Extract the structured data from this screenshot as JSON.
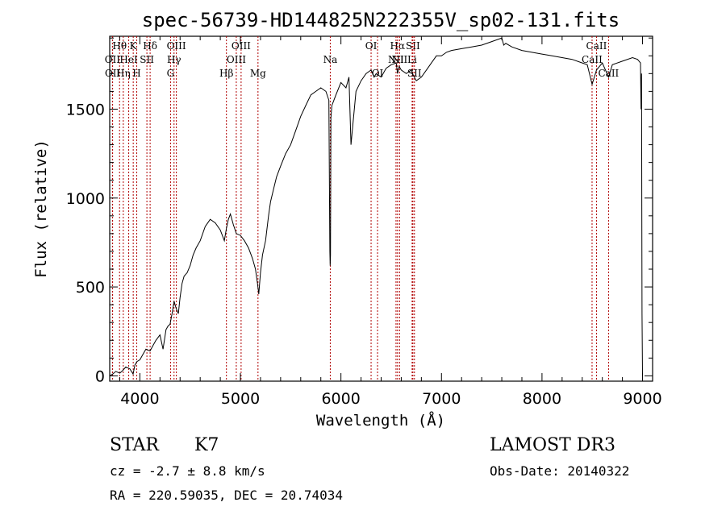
{
  "chart_data": {
    "type": "line",
    "title": "spec-56739-HD144825N222355V_sp02-131.fits",
    "xlabel": "Wavelength (Å)",
    "ylabel": "Flux (relative)",
    "xlim": [
      3700,
      9100
    ],
    "ylim": [
      -30,
      1910
    ],
    "x_ticks": [
      4000,
      5000,
      6000,
      7000,
      8000,
      9000
    ],
    "y_ticks": [
      0,
      500,
      1000,
      1500
    ],
    "series": [
      {
        "name": "flux",
        "x": [
          3700,
          3730,
          3760,
          3800,
          3830,
          3860,
          3900,
          3933,
          3950,
          3970,
          4000,
          4030,
          4060,
          4101,
          4130,
          4160,
          4200,
          4230,
          4260,
          4280,
          4300,
          4320,
          4340,
          4360,
          4383,
          4400,
          4420,
          4440,
          4470,
          4500,
          4530,
          4560,
          4600,
          4650,
          4700,
          4750,
          4800,
          4840,
          4861,
          4880,
          4900,
          4930,
          4960,
          5000,
          5040,
          5080,
          5120,
          5150,
          5170,
          5183,
          5200,
          5220,
          5250,
          5280,
          5300,
          5330,
          5360,
          5400,
          5450,
          5500,
          5550,
          5600,
          5650,
          5700,
          5750,
          5800,
          5850,
          5880,
          5890,
          5893,
          5896,
          5900,
          5910,
          5950,
          6000,
          6050,
          6080,
          6100,
          6150,
          6200,
          6250,
          6300,
          6330,
          6350,
          6400,
          6450,
          6500,
          6550,
          6563,
          6580,
          6600,
          6650,
          6700,
          6720,
          6750,
          6800,
          6850,
          6900,
          6950,
          7000,
          7050,
          7100,
          7200,
          7300,
          7400,
          7500,
          7600,
          7620,
          7640,
          7700,
          7800,
          7900,
          8000,
          8100,
          8200,
          8300,
          8400,
          8450,
          8498,
          8542,
          8600,
          8662,
          8700,
          8800,
          8900,
          8950,
          8980,
          8985,
          8990,
          8995,
          9000
        ],
        "y": [
          0,
          10,
          25,
          15,
          30,
          50,
          40,
          10,
          60,
          80,
          90,
          120,
          150,
          140,
          170,
          200,
          230,
          150,
          260,
          280,
          290,
          350,
          420,
          380,
          350,
          440,
          520,
          560,
          580,
          620,
          680,
          720,
          760,
          840,
          880,
          860,
          820,
          760,
          830,
          880,
          910,
          850,
          800,
          790,
          760,
          720,
          660,
          600,
          520,
          460,
          580,
          680,
          760,
          900,
          980,
          1050,
          1120,
          1180,
          1250,
          1300,
          1380,
          1460,
          1520,
          1580,
          1600,
          1620,
          1600,
          1550,
          700,
          620,
          680,
          1450,
          1520,
          1580,
          1650,
          1620,
          1680,
          1300,
          1600,
          1660,
          1700,
          1720,
          1680,
          1700,
          1680,
          1730,
          1750,
          1760,
          1700,
          1740,
          1720,
          1700,
          1720,
          1690,
          1660,
          1680,
          1720,
          1760,
          1800,
          1800,
          1820,
          1830,
          1840,
          1850,
          1860,
          1880,
          1900,
          1860,
          1870,
          1850,
          1830,
          1820,
          1810,
          1800,
          1790,
          1780,
          1760,
          1750,
          1640,
          1720,
          1760,
          1680,
          1750,
          1770,
          1790,
          1780,
          1760,
          1500,
          1700,
          350,
          0
        ]
      }
    ],
    "lines": [
      {
        "name": "Hθ",
        "wave": 3798,
        "row": 1
      },
      {
        "name": "OII",
        "wave": 3727,
        "row": 2
      },
      {
        "name": "OII",
        "wave": 3729,
        "row": 3
      },
      {
        "name": "K",
        "wave": 3934,
        "row": 1
      },
      {
        "name": "HeI",
        "wave": 3889,
        "row": 2
      },
      {
        "name": "Hη",
        "wave": 3835,
        "row": 3
      },
      {
        "name": "Hδ",
        "wave": 4102,
        "row": 1
      },
      {
        "name": "SII",
        "wave": 4070,
        "row": 2
      },
      {
        "name": "H",
        "wave": 3969,
        "row": 3
      },
      {
        "name": "OIII",
        "wave": 4363,
        "row": 1
      },
      {
        "name": "Hγ",
        "wave": 4340,
        "row": 2
      },
      {
        "name": "G",
        "wave": 4305,
        "row": 3
      },
      {
        "name": "OIII",
        "wave": 5007,
        "row": 1
      },
      {
        "name": "OIII",
        "wave": 4959,
        "row": 2
      },
      {
        "name": "Hβ",
        "wave": 4861,
        "row": 3
      },
      {
        "name": "Mg",
        "wave": 5175,
        "row": 3
      },
      {
        "name": "Na",
        "wave": 5894,
        "row": 2
      },
      {
        "name": "OI",
        "wave": 6300,
        "row": 1
      },
      {
        "name": "OI",
        "wave": 6364,
        "row": 3
      },
      {
        "name": "Hα",
        "wave": 6563,
        "row": 1
      },
      {
        "name": "NII",
        "wave": 6548,
        "row": 2
      },
      {
        "name": "NII",
        "wave": 6583,
        "row": 2
      },
      {
        "name": "SII",
        "wave": 6716,
        "row": 1
      },
      {
        "name": "Li",
        "wave": 6708,
        "row": 2
      },
      {
        "name": "SII",
        "wave": 6731,
        "row": 3
      },
      {
        "name": "CaII",
        "wave": 8542,
        "row": 1
      },
      {
        "name": "CaII",
        "wave": 8498,
        "row": 2
      },
      {
        "name": "CaII",
        "wave": 8662,
        "row": 3
      }
    ]
  },
  "info": {
    "object_type": "STAR",
    "subclass": "K7",
    "survey": "LAMOST DR3",
    "cz": "cz = -2.7 ± 8.8 km/s",
    "obs_date": "Obs-Date: 20140322",
    "coords": "RA = 220.59035, DEC =  20.74034"
  },
  "colors": {
    "line_marker": "#b00000",
    "spectrum": "#000000",
    "axes": "#000000"
  }
}
